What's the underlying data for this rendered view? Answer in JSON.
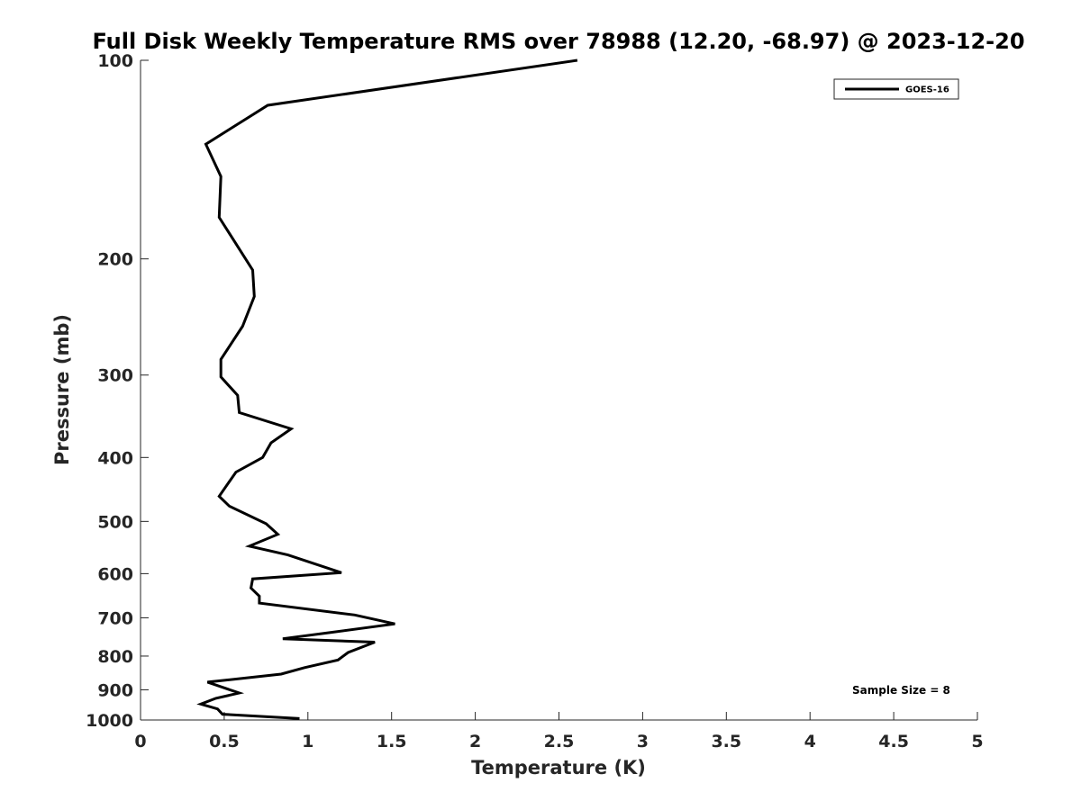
{
  "chart_data": {
    "type": "line",
    "title": "Full Disk Weekly Temperature RMS over 78988 (12.20, -68.97) @ 2023-12-20",
    "xlabel": "Temperature (K)",
    "ylabel": "Pressure (mb)",
    "xlim": [
      0,
      5
    ],
    "ylim": [
      100,
      1000
    ],
    "yscale": "log",
    "y_reversed": true,
    "xticks": [
      "0",
      "0.5",
      "1",
      "1.5",
      "2",
      "2.5",
      "3",
      "3.5",
      "4",
      "4.5",
      "5"
    ],
    "yticks": [
      "100",
      "200",
      "300",
      "400",
      "500",
      "600",
      "700",
      "800",
      "900",
      "1000"
    ],
    "grid": false,
    "legend_position": "top-right",
    "annotation": "Sample Size = 8",
    "series": [
      {
        "name": "GOES-16",
        "color": "#000000",
        "x": [
          2.61,
          0.76,
          0.39,
          0.48,
          0.47,
          0.67,
          0.68,
          0.61,
          0.48,
          0.48,
          0.58,
          0.59,
          0.9,
          0.78,
          0.73,
          0.57,
          0.47,
          0.53,
          0.75,
          0.82,
          0.65,
          0.88,
          1.2,
          0.67,
          0.66,
          0.71,
          0.71,
          1.28,
          1.52,
          1.13,
          0.85,
          1.4,
          1.24,
          1.18,
          0.98,
          0.84,
          0.4,
          0.59,
          0.45,
          0.36,
          0.46,
          0.49,
          0.95
        ],
        "y": [
          100,
          117,
          134,
          150,
          173,
          208,
          228,
          253,
          284,
          302,
          322,
          342,
          362,
          380,
          400,
          421,
          458,
          474,
          504,
          523,
          545,
          562,
          598,
          611,
          631,
          649,
          665,
          693,
          715,
          737,
          753,
          762,
          790,
          811,
          833,
          852,
          876,
          910,
          927,
          946,
          962,
          980,
          995
        ]
      }
    ]
  }
}
